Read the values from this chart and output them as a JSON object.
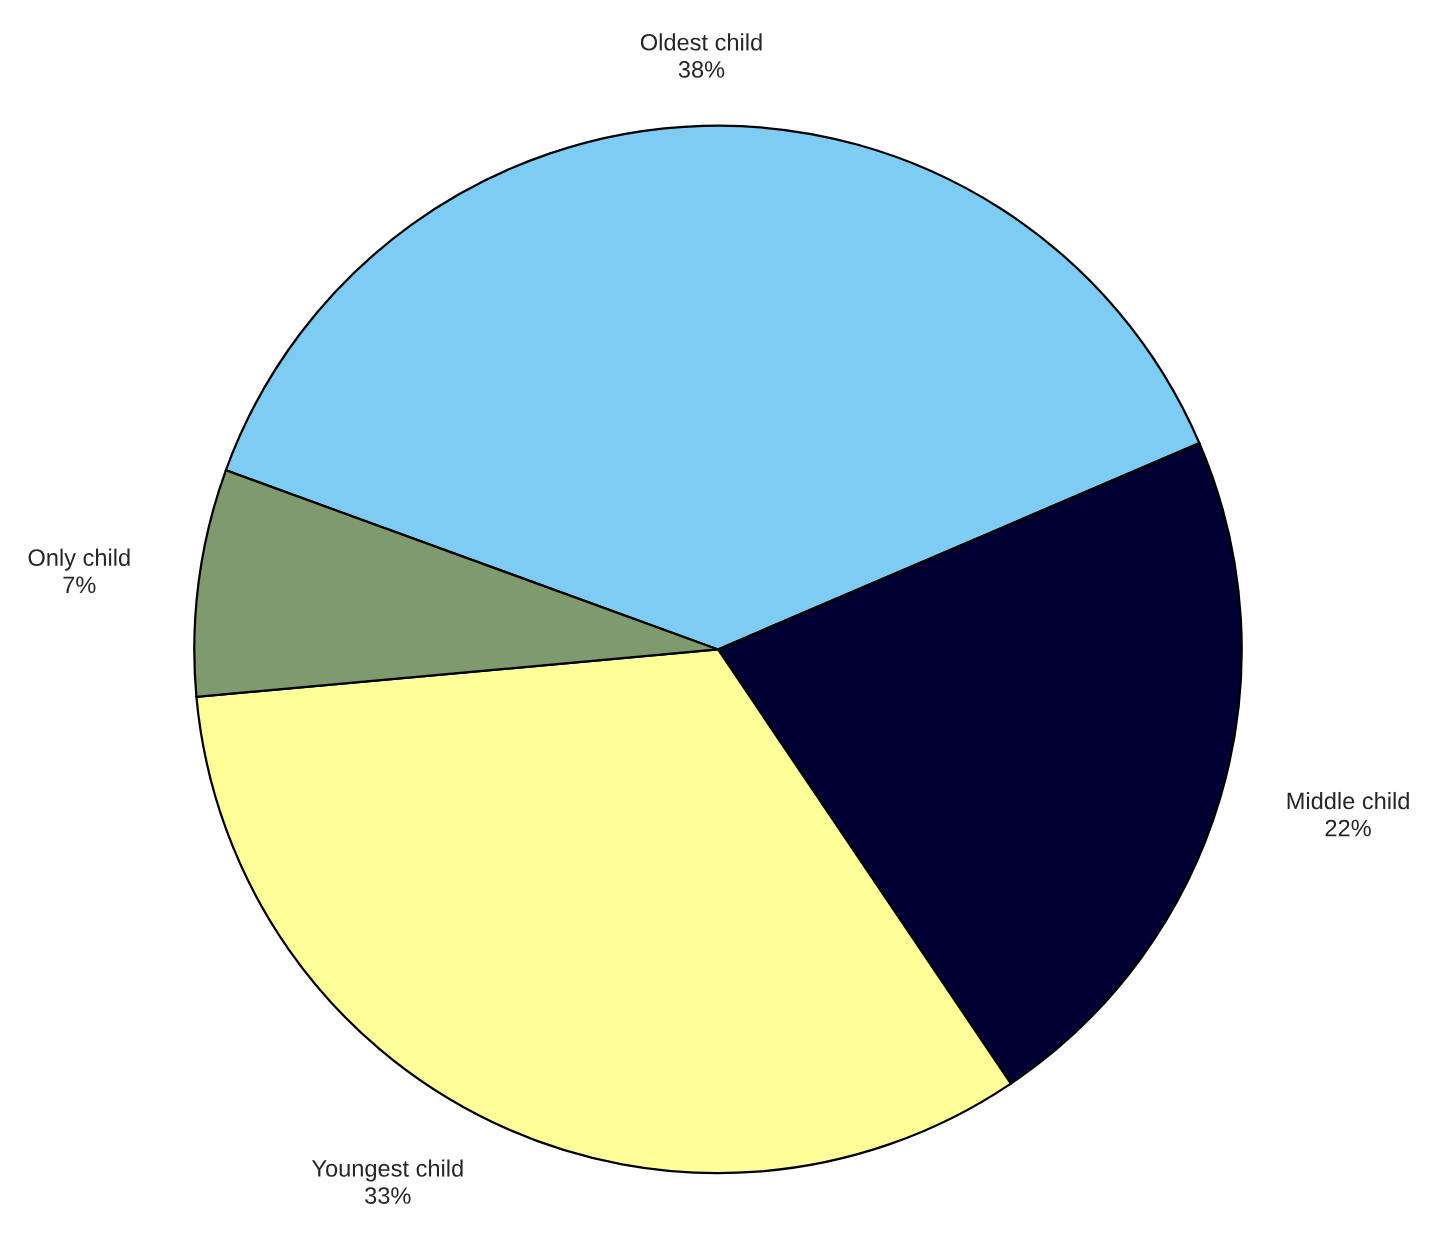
{
  "chart_data": {
    "type": "pie",
    "categories": [
      "Oldest child",
      "Middle child",
      "Youngest child",
      "Only child"
    ],
    "values": [
      38,
      22,
      33,
      7
    ],
    "value_labels": [
      "38%",
      "22%",
      "33%",
      "7%"
    ],
    "colors": [
      "#7ecbf3",
      "#000033",
      "#ffff99",
      "#7f9a6f"
    ],
    "legend": false
  }
}
